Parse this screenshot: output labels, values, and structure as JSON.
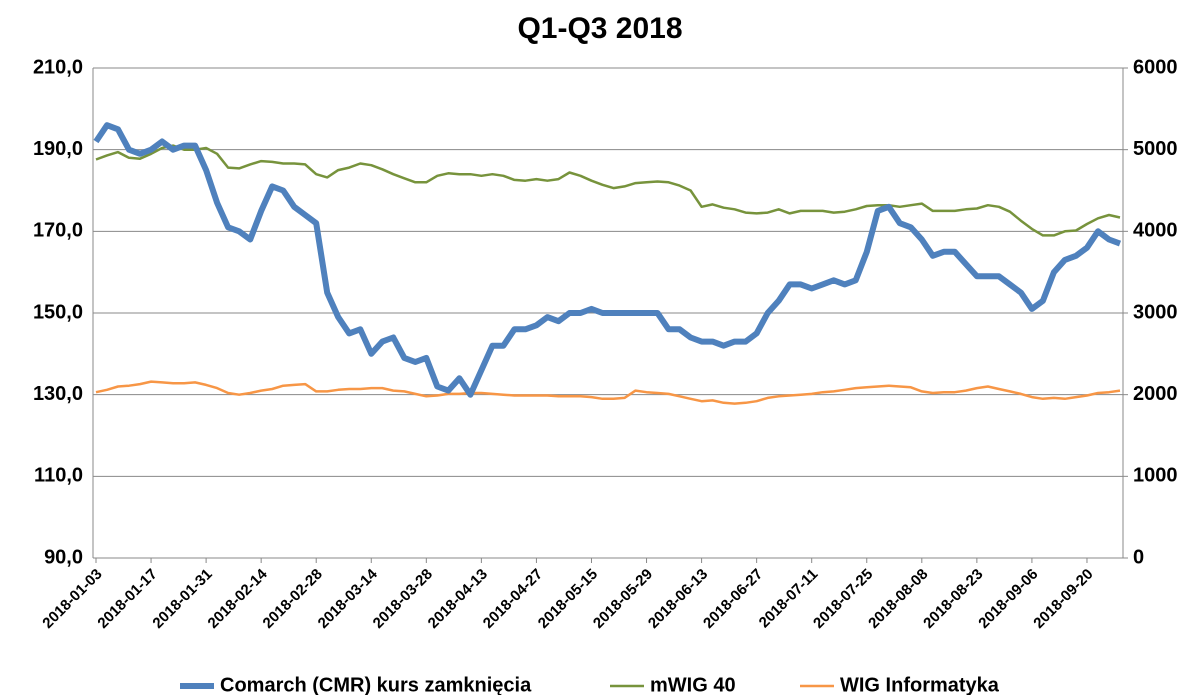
{
  "chart_data": {
    "type": "line",
    "title": "Q1-Q3 2018",
    "categories": [
      "2018-01-03",
      null,
      null,
      null,
      null,
      "2018-01-17",
      null,
      null,
      null,
      null,
      "2018-01-31",
      null,
      null,
      null,
      null,
      "2018-02-14",
      null,
      null,
      null,
      null,
      "2018-02-28",
      null,
      null,
      null,
      null,
      "2018-03-14",
      null,
      null,
      null,
      null,
      "2018-03-28",
      null,
      null,
      null,
      null,
      "2018-04-13",
      null,
      null,
      null,
      null,
      "2018-04-27",
      null,
      null,
      null,
      null,
      "2018-05-15",
      null,
      null,
      null,
      null,
      "2018-05-29",
      null,
      null,
      null,
      null,
      "2018-06-13",
      null,
      null,
      null,
      null,
      "2018-06-27",
      null,
      null,
      null,
      null,
      "2018-07-11",
      null,
      null,
      null,
      null,
      "2018-07-25",
      null,
      null,
      null,
      null,
      "2018-08-08",
      null,
      null,
      null,
      null,
      "2018-08-23",
      null,
      null,
      null,
      null,
      "2018-09-06",
      null,
      null,
      null,
      null,
      "2018-09-20",
      null,
      null,
      null
    ],
    "series": [
      {
        "name": "Comarch (CMR) kurs zamknięcia",
        "color": "#4f81bd",
        "axis": "y",
        "values": [
          192,
          196,
          195,
          190,
          189,
          190,
          192,
          190,
          191,
          191,
          185,
          177,
          171,
          170,
          168,
          175,
          181,
          180,
          176,
          174,
          172,
          155,
          149,
          145,
          146,
          140,
          143,
          144,
          139,
          138,
          139,
          132,
          131,
          134,
          130,
          136,
          142,
          142,
          146,
          146,
          147,
          149,
          148,
          150,
          150,
          151,
          150,
          150,
          150,
          150,
          150,
          150,
          146,
          146,
          144,
          143,
          143,
          142,
          143,
          143,
          145,
          150,
          153,
          157,
          157,
          156,
          157,
          158,
          157,
          158,
          165,
          175,
          176,
          172,
          171,
          168,
          164,
          165,
          165,
          162,
          159,
          159,
          159,
          157,
          155,
          151,
          153,
          160,
          163,
          164,
          166,
          170,
          168,
          167
        ]
      },
      {
        "name": "mWIG 40",
        "color": "#77933c",
        "axis": "y2",
        "values": [
          4880,
          4930,
          4970,
          4900,
          4890,
          4950,
          5020,
          5050,
          5000,
          5000,
          5020,
          4950,
          4780,
          4770,
          4820,
          4860,
          4850,
          4830,
          4830,
          4820,
          4700,
          4660,
          4750,
          4780,
          4830,
          4810,
          4760,
          4700,
          4650,
          4600,
          4600,
          4680,
          4710,
          4700,
          4700,
          4680,
          4700,
          4680,
          4630,
          4620,
          4640,
          4620,
          4640,
          4720,
          4680,
          4620,
          4570,
          4530,
          4550,
          4590,
          4600,
          4610,
          4600,
          4560,
          4500,
          4300,
          4330,
          4290,
          4270,
          4230,
          4220,
          4230,
          4270,
          4220,
          4250,
          4250,
          4250,
          4230,
          4240,
          4270,
          4310,
          4320,
          4320,
          4300,
          4320,
          4340,
          4250,
          4250,
          4250,
          4270,
          4280,
          4320,
          4300,
          4240,
          4130,
          4030,
          3950,
          3950,
          4000,
          4010,
          4090,
          4160,
          4200,
          4170
        ]
      },
      {
        "name": "WIG Informatyka",
        "color": "#f79646",
        "axis": "y2",
        "values": [
          2030,
          2060,
          2100,
          2110,
          2130,
          2160,
          2150,
          2140,
          2140,
          2150,
          2120,
          2080,
          2020,
          2000,
          2020,
          2050,
          2070,
          2110,
          2120,
          2130,
          2040,
          2040,
          2060,
          2070,
          2070,
          2080,
          2080,
          2050,
          2040,
          2010,
          1980,
          1990,
          2010,
          2010,
          2020,
          2020,
          2010,
          2000,
          1990,
          1990,
          1990,
          1990,
          1980,
          1980,
          1980,
          1970,
          1950,
          1950,
          1960,
          2050,
          2030,
          2020,
          2010,
          1980,
          1950,
          1920,
          1930,
          1900,
          1890,
          1900,
          1920,
          1960,
          1980,
          1990,
          2000,
          2010,
          2030,
          2040,
          2060,
          2080,
          2090,
          2100,
          2110,
          2100,
          2090,
          2040,
          2020,
          2030,
          2030,
          2050,
          2080,
          2100,
          2070,
          2040,
          2010,
          1970,
          1950,
          1960,
          1950,
          1970,
          1990,
          2020,
          2030,
          2050
        ]
      }
    ],
    "ylim": [
      90,
      210
    ],
    "yticks": [
      {
        "value": 90,
        "label": "90,0"
      },
      {
        "value": 110,
        "label": "110,0"
      },
      {
        "value": 130,
        "label": "130,0"
      },
      {
        "value": 150,
        "label": "150,0"
      },
      {
        "value": 170,
        "label": "170,0"
      },
      {
        "value": 190,
        "label": "190,0"
      },
      {
        "value": 210,
        "label": "210,0"
      }
    ],
    "y2lim": [
      0,
      6000
    ],
    "y2ticks": [
      0,
      1000,
      2000,
      3000,
      4000,
      5000,
      6000
    ],
    "grid": true,
    "legend": "bottom"
  }
}
